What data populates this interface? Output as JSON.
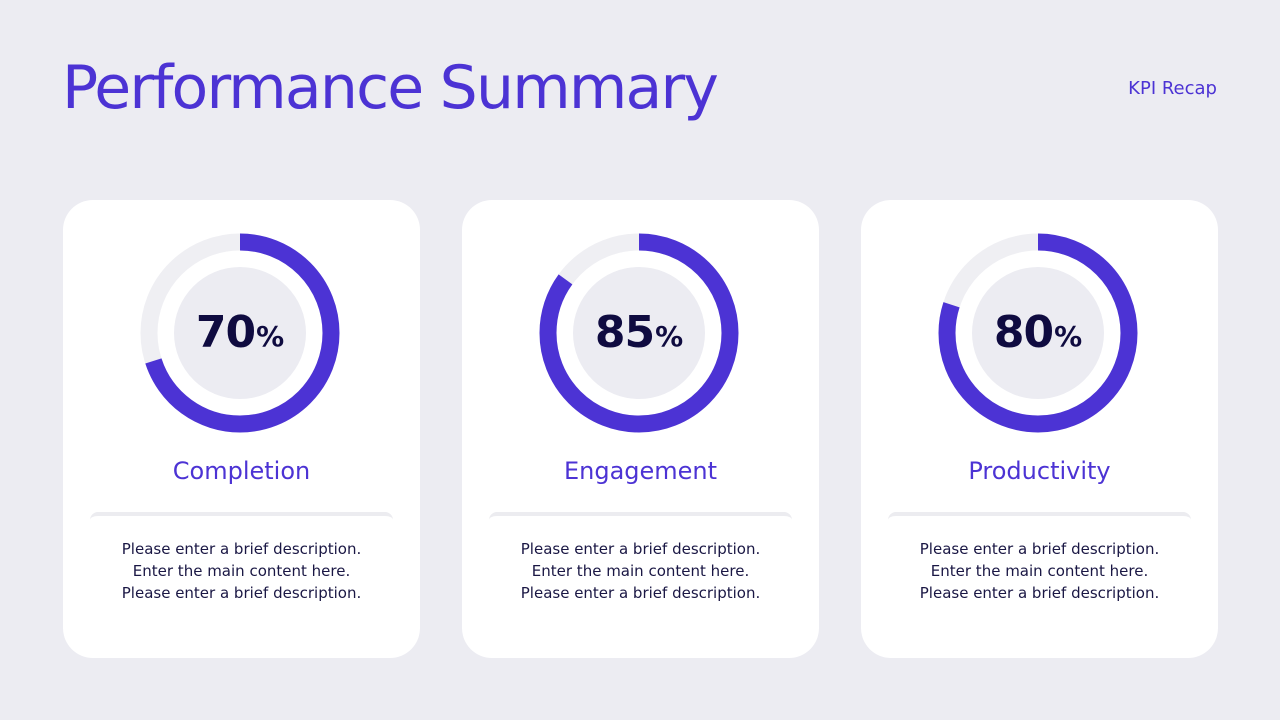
{
  "header": {
    "title": "Performance Summary",
    "tag": "KPI Recap"
  },
  "colors": {
    "accent": "#4c33d4",
    "track": "#efeff3",
    "inner": "#ececf2",
    "value_text": "#0f0b40"
  },
  "cards": [
    {
      "label": "Completion",
      "value": "70",
      "unit": "%",
      "progress": 0.7,
      "lines": [
        "Please enter a brief description.",
        "Enter the main content here.",
        "Please enter a brief description."
      ]
    },
    {
      "label": "Engagement",
      "value": "85",
      "unit": "%",
      "progress": 0.85,
      "lines": [
        "Please enter a brief description.",
        "Enter the main content here.",
        "Please enter a brief description."
      ]
    },
    {
      "label": "Productivity",
      "value": "80",
      "unit": "%",
      "progress": 0.8,
      "lines": [
        "Please enter a brief description.",
        "Enter the main content here.",
        "Please enter a brief description."
      ]
    }
  ]
}
